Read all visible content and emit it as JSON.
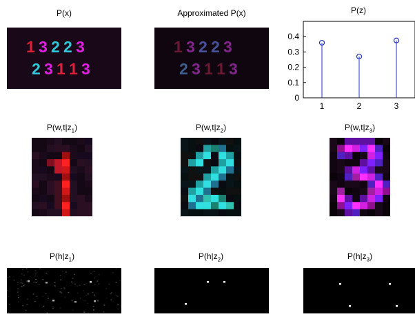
{
  "figure": {
    "row1": [
      {
        "title": "P(x)",
        "digits_top": [
          "1",
          "3",
          "2",
          "2",
          "3"
        ],
        "digits_bottom": [
          "2",
          "3",
          "1",
          "1",
          "3"
        ]
      },
      {
        "title": "Approximated P(x)",
        "digits_top": [
          "1",
          "3",
          "2",
          "2",
          "3"
        ],
        "digits_bottom": [
          "2",
          "3",
          "1",
          "1",
          "3"
        ]
      }
    ],
    "row2": [
      {
        "title_main": "P(w,t|z",
        "title_sub": "1",
        "title_close": ")"
      },
      {
        "title_main": "P(w,t|z",
        "title_sub": "2",
        "title_close": ")"
      },
      {
        "title_main": "P(w,t|z",
        "title_sub": "3",
        "title_close": ")"
      }
    ],
    "row3": [
      {
        "title_main": "P(h|z",
        "title_sub": "1",
        "title_close": ")"
      },
      {
        "title_main": "P(h|z",
        "title_sub": "2",
        "title_close": ")"
      },
      {
        "title_main": "P(h|z",
        "title_sub": "3",
        "title_close": ")"
      }
    ],
    "colors": {
      "digit1": "#e0203a",
      "digit2": "#30c8d8",
      "digit3": "#e020e0",
      "stem": "#2030c0",
      "background": "#000000"
    }
  },
  "chart_data": [
    {
      "type": "scatter",
      "style": "stem",
      "title": "P(z)",
      "x": [
        1,
        2,
        3
      ],
      "values": [
        0.36,
        0.27,
        0.375
      ],
      "xlim": [
        0.5,
        3.5
      ],
      "ylim": [
        0,
        0.5
      ],
      "xticks": [
        "1",
        "2",
        "3"
      ],
      "yticks": [
        "0",
        "0.1",
        "0.2",
        "0.3",
        "0.4"
      ],
      "grid": false
    }
  ]
}
